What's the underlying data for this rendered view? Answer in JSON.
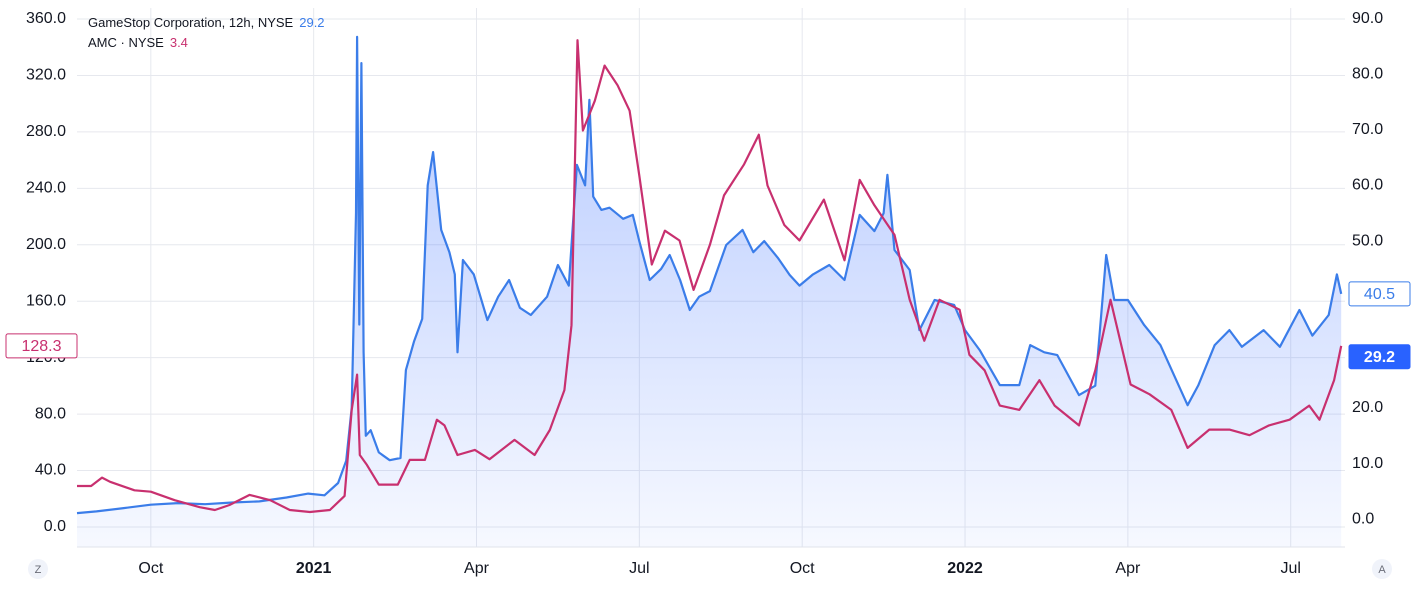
{
  "chart_data": {
    "type": "line",
    "series": [
      {
        "name": "GameStop Corporation, 12h, NYSE",
        "legend_value": 29.2,
        "color": "#3b7de9",
        "axis": "y2",
        "area": true,
        "x": [
          -1.36,
          -1.0,
          -0.5,
          0,
          0.5,
          1.0,
          1.5,
          2.0,
          2.5,
          2.9,
          3.2,
          3.45,
          3.6,
          3.7,
          3.78,
          3.8,
          3.84,
          3.88,
          3.92,
          3.96,
          4.05,
          4.2,
          4.4,
          4.6,
          4.7,
          4.85,
          5.0,
          5.1,
          5.2,
          5.35,
          5.5,
          5.6,
          5.65,
          5.75,
          5.95,
          6.2,
          6.4,
          6.6,
          6.8,
          7.0,
          7.3,
          7.5,
          7.7,
          7.85,
          8.0,
          8.08,
          8.15,
          8.3,
          8.45,
          8.7,
          8.88,
          9.0,
          9.19,
          9.4,
          9.56,
          9.75,
          9.93,
          10.1,
          10.3,
          10.6,
          10.9,
          11.1,
          11.3,
          11.55,
          11.77,
          11.95,
          12.2,
          12.5,
          12.78,
          13.06,
          13.33,
          13.5,
          13.57,
          13.7,
          13.98,
          14.16,
          14.44,
          14.8,
          15.0,
          15.27,
          15.64,
          16.0,
          16.2,
          16.46,
          16.7,
          17.1,
          17.4,
          17.6,
          17.75,
          18.0,
          18.3,
          18.6,
          19.1,
          19.3,
          19.6,
          19.87,
          20.1,
          20.5,
          20.8,
          21.16,
          21.4,
          21.7,
          21.85,
          21.93
        ],
        "values": [
          1.1,
          1.4,
          2.0,
          2.6,
          2.9,
          2.7,
          3.0,
          3.2,
          3.9,
          4.6,
          4.3,
          6.5,
          10.5,
          20,
          55,
          86.7,
          35,
          82,
          30,
          15,
          16,
          12,
          10.6,
          11,
          26.8,
          32,
          36,
          60,
          66,
          52,
          48,
          44,
          30,
          46.6,
          44,
          35.8,
          40,
          43,
          38,
          36.7,
          40,
          45.7,
          42,
          63.7,
          60,
          75.4,
          58,
          55.6,
          56,
          54,
          54.7,
          50,
          43,
          45,
          47.5,
          43,
          37.6,
          40,
          41,
          49.3,
          52,
          48,
          50,
          47,
          43.9,
          42,
          44,
          45.7,
          43,
          54.7,
          51.8,
          55,
          61.9,
          48.4,
          44.8,
          34,
          39.4,
          38.5,
          34,
          30.4,
          24.1,
          24.1,
          31.3,
          30,
          29.5,
          22.3,
          24,
          47.5,
          39.4,
          39.4,
          34.9,
          31.3,
          20.5,
          24.1,
          31.3,
          34,
          31,
          34,
          31,
          37.6,
          33,
          36.7,
          44,
          40.5
        ]
      },
      {
        "name": "AMC · NYSE",
        "legend_value": 3.4,
        "color": "#c8306f",
        "axis": "y",
        "x": [
          -1.36,
          -1.1,
          -0.9,
          -0.75,
          -0.3,
          0,
          0.44,
          0.9,
          1.18,
          1.45,
          1.82,
          2.2,
          2.56,
          2.93,
          3.3,
          3.57,
          3.7,
          3.8,
          3.85,
          3.98,
          4.2,
          4.55,
          4.77,
          5.05,
          5.27,
          5.41,
          5.65,
          5.97,
          6.24,
          6.7,
          7.07,
          7.35,
          7.62,
          7.75,
          7.86,
          7.96,
          8.18,
          8.36,
          8.6,
          8.82,
          9.0,
          9.23,
          9.47,
          9.74,
          10.0,
          10.3,
          10.56,
          10.93,
          11.2,
          11.36,
          11.67,
          11.95,
          12.4,
          12.78,
          13.06,
          13.33,
          13.7,
          13.98,
          14.25,
          14.53,
          14.9,
          15.08,
          15.36,
          15.64,
          16.0,
          16.37,
          16.65,
          17.1,
          17.4,
          17.68,
          18.05,
          18.4,
          18.8,
          19.1,
          19.5,
          19.87,
          20.24,
          20.6,
          20.98,
          21.34,
          21.53,
          21.8,
          21.93
        ],
        "values": [
          29,
          29,
          35,
          32,
          26,
          25,
          19,
          14,
          12,
          15.6,
          22.7,
          19,
          12,
          10.6,
          12,
          22,
          83,
          108,
          51,
          44,
          30,
          30,
          47.5,
          47.5,
          76,
          72,
          51,
          54.6,
          48,
          61.7,
          51,
          68.7,
          97,
          143,
          345,
          281,
          302,
          327,
          313,
          295,
          249,
          186,
          210,
          203,
          168,
          200,
          235,
          257,
          278,
          242,
          214,
          203,
          232,
          189,
          246,
          228,
          207,
          161,
          132,
          161,
          154,
          122,
          111,
          86,
          83,
          104,
          86,
          72,
          111,
          161,
          101,
          94,
          83,
          56,
          69,
          69,
          65,
          72,
          76,
          86,
          76,
          104,
          128.3
        ]
      }
    ],
    "xlim": [
      -1.36,
      22.0
    ],
    "xticks": [
      {
        "value": 0,
        "label": "Oct"
      },
      {
        "value": 3,
        "label": "2021"
      },
      {
        "value": 6,
        "label": "Apr"
      },
      {
        "value": 9,
        "label": "Jul"
      },
      {
        "value": 12,
        "label": "Oct"
      },
      {
        "value": 15,
        "label": "2022"
      },
      {
        "value": 18,
        "label": "Apr"
      },
      {
        "value": 21,
        "label": "Jul"
      }
    ],
    "ylim": [
      -14.2,
      367.8
    ],
    "yticks": [
      {
        "value": 0,
        "label": "0.0"
      },
      {
        "value": 40,
        "label": "40.0"
      },
      {
        "value": 80,
        "label": "80.0"
      },
      {
        "value": 120,
        "label": "120.0"
      },
      {
        "value": 160,
        "label": "160.0"
      },
      {
        "value": 200,
        "label": "200.0"
      },
      {
        "value": 240,
        "label": "240.0"
      },
      {
        "value": 280,
        "label": "280.0"
      },
      {
        "value": 320,
        "label": "320.0"
      },
      {
        "value": 360,
        "label": "360.0"
      }
    ],
    "y2lim": [
      -5.0,
      91.9
    ],
    "y2ticks": [
      {
        "value": 0,
        "label": "0.0"
      },
      {
        "value": 10,
        "label": "10.0"
      },
      {
        "value": 20,
        "label": "20.0"
      },
      {
        "value": 30,
        "label": "30.0"
      },
      {
        "value": 40,
        "label": "40.0"
      },
      {
        "value": 50,
        "label": "50.0"
      },
      {
        "value": 60,
        "label": "60.0"
      },
      {
        "value": 70,
        "label": "70.0"
      },
      {
        "value": 80,
        "label": "80.0"
      },
      {
        "value": 90,
        "label": "90.0"
      }
    ],
    "grid": true,
    "price_labels": [
      {
        "value": 40.5,
        "axis": "y2",
        "color": "#3b7de9",
        "style": "outline"
      },
      {
        "value": 29.2,
        "axis": "y2",
        "color": "#2962ff",
        "style": "filled"
      },
      {
        "value": 128.3,
        "axis": "y",
        "color": "#c8306f",
        "style": "outline"
      }
    ],
    "buttons": [
      "Z",
      "A"
    ]
  }
}
